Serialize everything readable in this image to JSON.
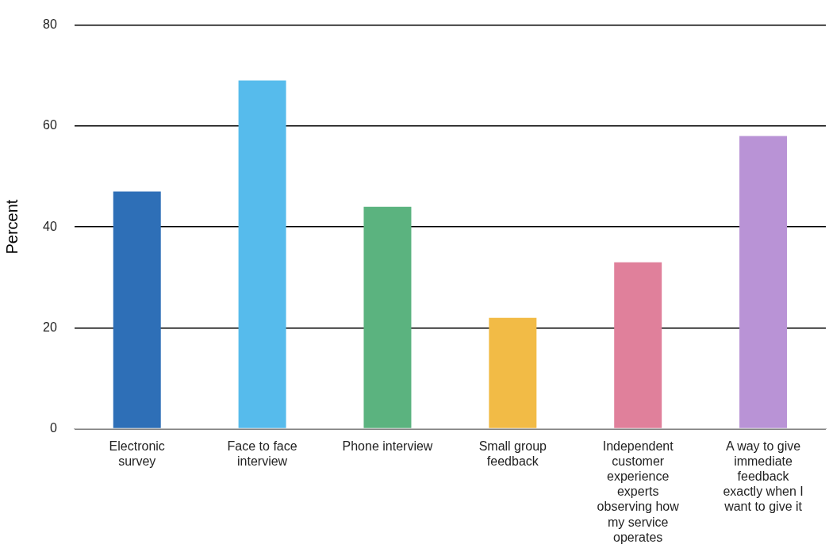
{
  "chart_data": {
    "type": "bar",
    "ylabel": "Percent",
    "categories": [
      "Electronic survey",
      "Face to face interview",
      "Phone interview",
      "Small group feedback",
      "Independent customer experience experts observing how my service operates",
      "A way to give immediate feedback exactly when I want to give it"
    ],
    "values": [
      47,
      69,
      44,
      22,
      33,
      58
    ],
    "colors": [
      "#2e6fb7",
      "#56bbec",
      "#5bb37f",
      "#f2bb46",
      "#e0809b",
      "#b993d6"
    ],
    "ylim": [
      0,
      80
    ],
    "yticks": [
      0,
      20,
      40,
      60,
      80
    ],
    "grid": "y",
    "legend": false
  }
}
